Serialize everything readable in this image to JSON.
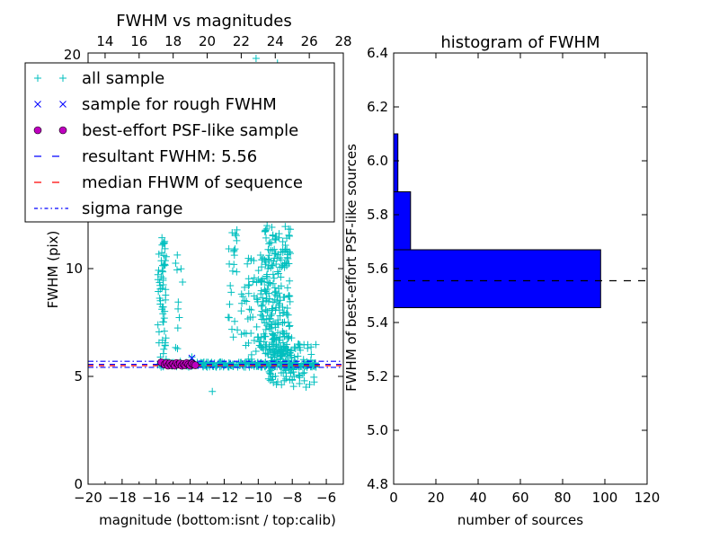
{
  "chart_data": [
    {
      "type": "scatter",
      "title": "FWHM vs magnitudes",
      "xlabel": "magnitude (bottom:isnt / top:calib)",
      "ylabel": "FWHM (pix)",
      "xlim": [
        -20,
        -5
      ],
      "ylim": [
        0,
        20
      ],
      "top_xlim": [
        13.0,
        28.0
      ],
      "x_ticks": [
        -20,
        -18,
        -16,
        -14,
        -12,
        -10,
        -8,
        -6
      ],
      "x_tick_labels": [
        "−20",
        "−18",
        "−16",
        "−14",
        "−12",
        "−10",
        "−8",
        "−6"
      ],
      "top_ticks": [
        14,
        16,
        18,
        20,
        22,
        24,
        26,
        28
      ],
      "top_tick_labels": [
        "14",
        "16",
        "18",
        "20",
        "22",
        "24",
        "26",
        "28"
      ],
      "y_ticks": [
        0,
        5,
        10
      ],
      "y_tick_labels": [
        "0",
        "5",
        "10"
      ],
      "top_corner_label": "20",
      "grid": false,
      "legend_position": "top-left",
      "legend": [
        {
          "label": "all sample",
          "marker": "plus",
          "color": "#00bfbf"
        },
        {
          "label": "sample for rough FWHM",
          "marker": "x",
          "color": "#0000ff"
        },
        {
          "label": "best-effort PSF-like sample",
          "marker": "circle",
          "color": "#bf00bf"
        },
        {
          "label": "resultant FWHM: 5.56",
          "marker": "dash",
          "color": "#0000ff"
        },
        {
          "label": "median FHWM of sequence",
          "marker": "dash",
          "color": "#ff0000"
        },
        {
          "label": "sigma range",
          "marker": "dashdot",
          "color": "#0000ff"
        }
      ],
      "series": [
        {
          "name": "all sample",
          "marker": "plus",
          "color": "#00bfbf",
          "clusters": [
            {
              "x_range": [
                -15.9,
                -6.6
              ],
              "y_center": 5.55,
              "y_spread": 0.12,
              "count": 260
            },
            {
              "x_range": [
                -15.9,
                -15.4
              ],
              "y_range": [
                5.5,
                11.5
              ],
              "count": 60
            },
            {
              "x_range": [
                -14.9,
                -14.4
              ],
              "y_range": [
                5.6,
                11.0
              ],
              "count": 12
            },
            {
              "x_range": [
                -11.8,
                -11.2
              ],
              "y_range": [
                6.0,
                12.5
              ],
              "count": 25
            },
            {
              "x_range": [
                -11.0,
                -9.4
              ],
              "y_range": [
                5.5,
                10.5
              ],
              "count": 60
            },
            {
              "x_range": [
                -9.9,
                -8.1
              ],
              "y_range": [
                6.0,
                12.0
              ],
              "count": 220
            },
            {
              "x_range": [
                -9.4,
                -7.9
              ],
              "y_range": [
                4.6,
                7.0
              ],
              "count": 90
            },
            {
              "x_range": [
                -8.2,
                -6.6
              ],
              "y_range": [
                4.5,
                6.5
              ],
              "count": 40
            },
            {
              "x_range": [
                -10.2,
                -8.4
              ],
              "y_range": [
                12.0,
                19.8
              ],
              "count": 35
            }
          ],
          "points": [
            [
              -12.7,
              4.3
            ],
            [
              -13.9,
              5.9
            ],
            [
              -6.8,
              5.6
            ],
            [
              -7.1,
              6.3
            ]
          ]
        },
        {
          "name": "sample for rough FWHM",
          "marker": "x",
          "color": "#0000ff",
          "points": [
            [
              -15.5,
              5.6
            ],
            [
              -15.2,
              5.55
            ],
            [
              -14.9,
              5.6
            ],
            [
              -14.6,
              5.55
            ],
            [
              -14.3,
              5.6
            ],
            [
              -14.0,
              5.6
            ],
            [
              -13.9,
              5.85
            ],
            [
              -13.7,
              5.5
            ]
          ]
        },
        {
          "name": "best-effort PSF-like sample",
          "marker": "circle",
          "color": "#bf00bf",
          "points": [
            [
              -15.7,
              5.65
            ],
            [
              -15.5,
              5.55
            ],
            [
              -15.4,
              5.62
            ],
            [
              -15.3,
              5.5
            ],
            [
              -15.2,
              5.6
            ],
            [
              -15.1,
              5.52
            ],
            [
              -15.0,
              5.58
            ],
            [
              -14.9,
              5.5
            ],
            [
              -14.8,
              5.62
            ],
            [
              -14.7,
              5.55
            ],
            [
              -14.6,
              5.6
            ],
            [
              -14.5,
              5.5
            ],
            [
              -14.4,
              5.58
            ],
            [
              -14.3,
              5.52
            ],
            [
              -14.2,
              5.62
            ],
            [
              -14.1,
              5.55
            ],
            [
              -14.0,
              5.5
            ],
            [
              -13.9,
              5.6
            ],
            [
              -13.8,
              5.55
            ],
            [
              -13.7,
              5.52
            ]
          ]
        }
      ],
      "hlines": [
        {
          "name": "resultant FWHM: 5.56",
          "y": 5.56,
          "style": "dashed",
          "color": "#0000ff"
        },
        {
          "name": "median FHWM of sequence",
          "y": 5.5,
          "style": "dashed",
          "color": "#ff0000"
        },
        {
          "name": "sigma range upper",
          "y": 5.7,
          "style": "dashdot",
          "color": "#0000ff"
        },
        {
          "name": "sigma range lower",
          "y": 5.42,
          "style": "dashdot",
          "color": "#0000ff"
        }
      ]
    },
    {
      "type": "bar",
      "orientation": "horizontal",
      "title": "histogram of FWHM",
      "xlabel": "number of sources",
      "ylabel": "FWHM of best-effort PSF-like sources",
      "xlim": [
        0,
        120
      ],
      "ylim": [
        4.8,
        6.4
      ],
      "x_ticks": [
        0,
        20,
        40,
        60,
        80,
        100,
        120
      ],
      "x_tick_labels": [
        "0",
        "20",
        "40",
        "60",
        "80",
        "100",
        "120"
      ],
      "y_ticks": [
        4.8,
        5.0,
        5.2,
        5.4,
        5.6,
        5.8,
        6.0,
        6.2,
        6.4
      ],
      "y_tick_labels": [
        "4.8",
        "5.0",
        "5.2",
        "5.4",
        "5.6",
        "5.8",
        "6.0",
        "6.2",
        "6.4"
      ],
      "bar_color": "#0000ff",
      "bins": [
        {
          "y0": 5.455,
          "y1": 5.67,
          "count": 98
        },
        {
          "y0": 5.67,
          "y1": 5.885,
          "count": 8
        },
        {
          "y0": 5.885,
          "y1": 6.1,
          "count": 2
        }
      ],
      "reference_line": {
        "y": 5.555,
        "style": "dashed",
        "color": "#000000"
      }
    }
  ]
}
